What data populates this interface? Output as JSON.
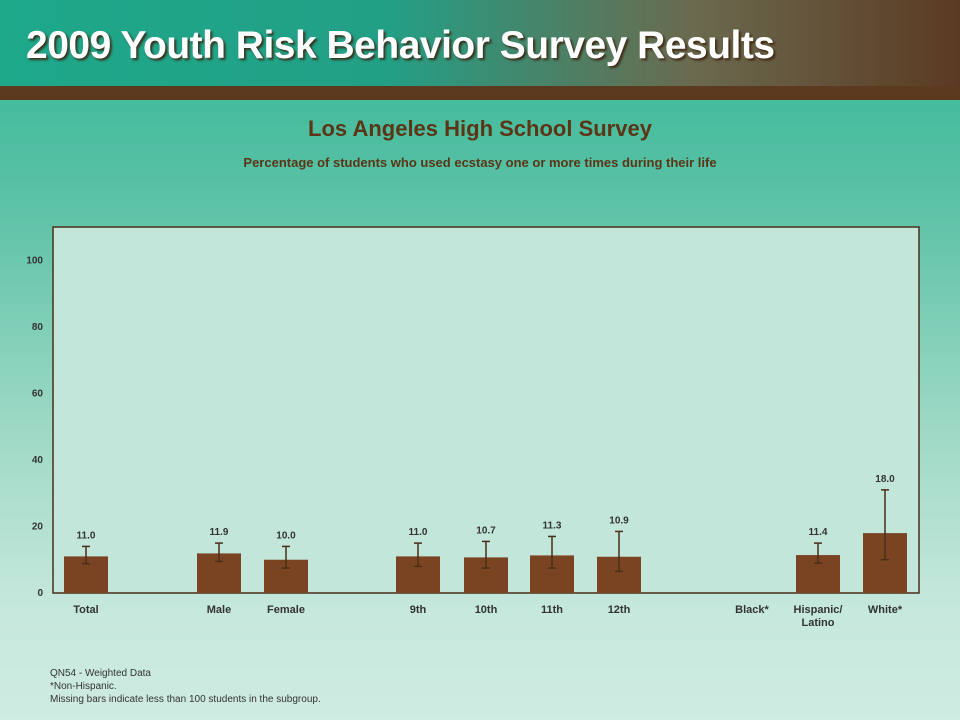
{
  "header": {
    "title": "2009 Youth Risk Behavior Survey Results"
  },
  "chart_data": {
    "type": "bar",
    "title": "Los Angeles High School Survey",
    "subtitle": "Percentage of students who used ecstasy one or more times during their life",
    "ylim": [
      0,
      110
    ],
    "yticks": [
      "0",
      "20",
      "40",
      "60",
      "80",
      "100"
    ],
    "categories": [
      "Total",
      "Male",
      "Female",
      "9th",
      "10th",
      "11th",
      "12th",
      "Black*",
      "Hispanic/ Latino",
      "White*"
    ],
    "values": [
      11.0,
      11.9,
      10.0,
      11.0,
      10.7,
      11.3,
      10.9,
      null,
      11.4,
      18.0
    ],
    "labels": [
      "11.0",
      "11.9",
      "10.0",
      "11.0",
      "10.7",
      "11.3",
      "10.9",
      "",
      "11.4",
      "18.0"
    ],
    "ci_low": [
      8.8,
      9.5,
      7.5,
      8.0,
      7.5,
      7.5,
      6.5,
      null,
      9.0,
      10.0
    ],
    "ci_high": [
      14.0,
      15.0,
      14.0,
      15.0,
      15.5,
      17.0,
      18.5,
      null,
      15.0,
      31.0
    ],
    "bar_color": "#7a4422",
    "plot_background": "#c3e6db"
  },
  "notes": {
    "line1": "QN54 - Weighted Data",
    "line2": "*Non-Hispanic.",
    "line3": "Missing bars indicate less than 100 students in the subgroup."
  }
}
